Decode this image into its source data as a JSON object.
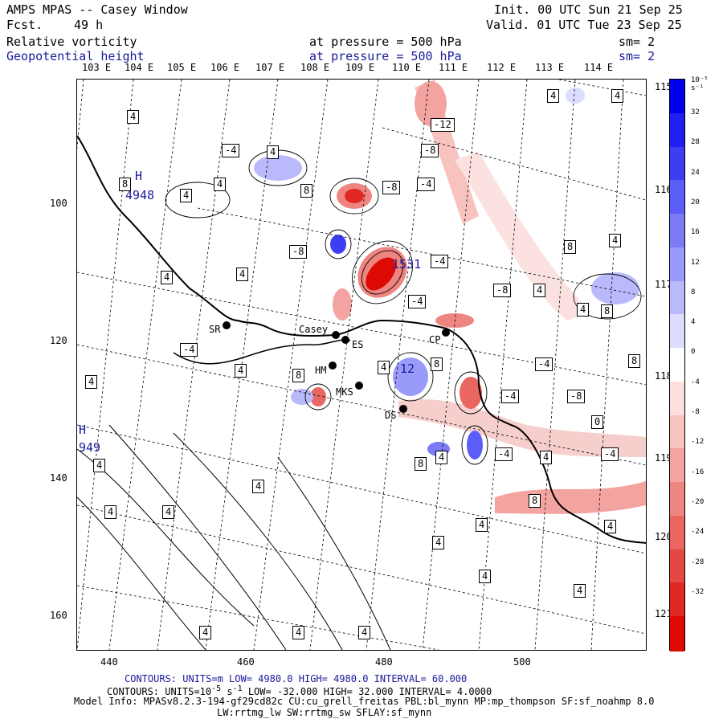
{
  "header": {
    "title": "AMPS MPAS -- Casey Window",
    "fcst_label": "Fcst.",
    "fcst_value": "49 h",
    "init": "Init. 00 UTC Sun 21 Sep 25",
    "valid": "Valid. 01 UTC Tue 23 Sep 25"
  },
  "fields": [
    {
      "name": "Relative vorticity",
      "level": "at pressure =  500 hPa",
      "sm": "sm= 2"
    },
    {
      "name": "Geopotential height",
      "level": "at pressure =  500 hPa",
      "sm": "sm= 2"
    }
  ],
  "axes": {
    "lon_top": [
      "103 E",
      "104 E",
      "105 E",
      "106 E",
      "107 E",
      "108 E",
      "109 E",
      "110 E",
      "111 E",
      "112 E",
      "113 E",
      "114 E"
    ],
    "lon_right": [
      "115 E",
      "116 E",
      "117 E",
      "118 E",
      "119 E",
      "120 E",
      "121 E"
    ],
    "x_ticks": [
      "440",
      "460",
      "480",
      "500"
    ],
    "y_ticks": [
      "100",
      "120",
      "140",
      "160"
    ]
  },
  "colorbar": {
    "unit": "10⁻⁵ s⁻¹",
    "labels": [
      "32",
      "28",
      "24",
      "20",
      "16",
      "12",
      "8",
      "4",
      "0",
      "-4",
      "-8",
      "-12",
      "-16",
      "-20",
      "-24",
      "-28",
      "-32"
    ],
    "colors": [
      "#0000ee",
      "#1f1ff2",
      "#3d3df4",
      "#5c5cf6",
      "#7b7bf8",
      "#9a9afa",
      "#b9b9fc",
      "#dcdcfe",
      "#ffffff",
      "#fde0de",
      "#f8c2bf",
      "#f3a3a0",
      "#ee8580",
      "#e96661",
      "#e44842",
      "#e02923",
      "#dd0a04"
    ]
  },
  "map_labels": {
    "stations": [
      "SR",
      "Casey",
      "HM",
      "MKS",
      "DS",
      "CP",
      "ES"
    ],
    "highs": [
      {
        "mark": "H",
        "value": "4948"
      },
      {
        "mark": "H",
        "value": "949"
      }
    ],
    "centers": [
      "1531",
      "12"
    ],
    "contour_values": [
      "4",
      "-4",
      "8",
      "-8",
      "-12",
      "0"
    ]
  },
  "footer": {
    "line1": "CONTOURS:  UNITS=m  LOW=  4980.0       HIGH=  4980.0      INTERVAL=   60.000",
    "line2_prefix": "CONTOURS:  UNITS=10",
    "line2_sup": "-5",
    "line2_mid": " s",
    "line2_sup2": "-1",
    "line2_rest": "   LOW= -32.000       HIGH= 32.000      INTERVAL=   4.0000",
    "line3": "Model Info: MPASv8.2.3-194-gf29cd82c CU:cu_grell_freitas PBL:bl_mynn MP:mp_thompson SF:sf_noahmp 8.0",
    "line4": "LW:rrtmg_lw SW:rrtmg_sw SFLAY:sf_mynn"
  }
}
